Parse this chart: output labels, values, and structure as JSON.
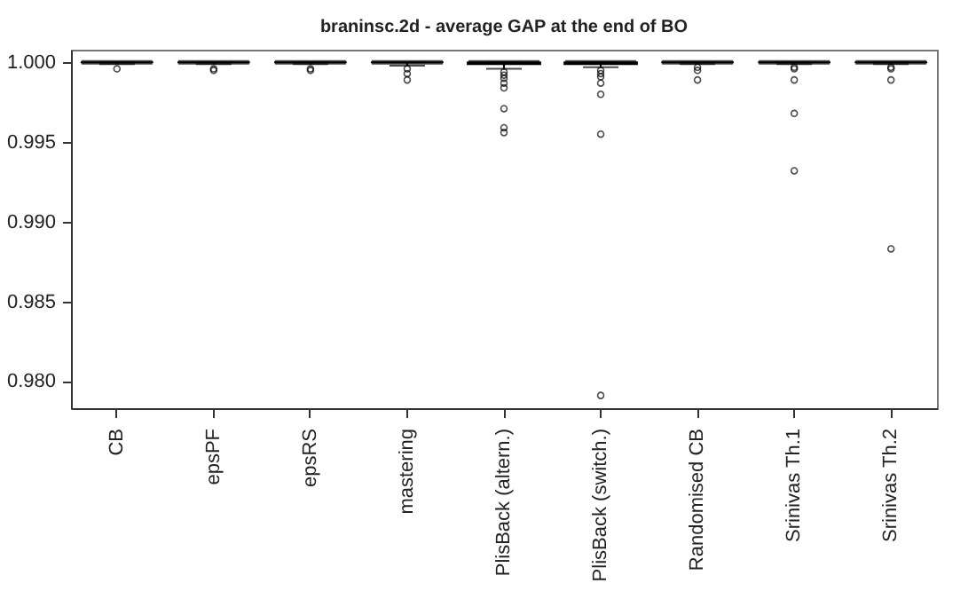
{
  "chart_data": {
    "type": "box",
    "title": "braninsc.2d - average GAP at the end of BO",
    "categories": [
      "CB",
      "epsPF",
      "epsRS",
      "mastering",
      "PlisBack (altern.)",
      "PlisBack (switch.)",
      "Randomised CB",
      "Srinivas Th.1",
      "Srinivas Th.2"
    ],
    "boxes": [
      {
        "low": 0.9999,
        "q1": 1.0,
        "median": 1.0,
        "q3": 1.0,
        "high": 1.0,
        "outliers": [
          0.9996
        ]
      },
      {
        "low": 0.9999,
        "q1": 1.0,
        "median": 1.0,
        "q3": 1.0,
        "high": 1.0,
        "outliers": [
          0.9996,
          0.9995
        ]
      },
      {
        "low": 0.9999,
        "q1": 1.0,
        "median": 1.0,
        "q3": 1.0,
        "high": 1.0,
        "outliers": [
          0.9996,
          0.9995
        ]
      },
      {
        "low": 0.9998,
        "q1": 1.0,
        "median": 1.0,
        "q3": 1.0,
        "high": 1.0,
        "outliers": [
          0.9996,
          0.9993,
          0.9989
        ]
      },
      {
        "low": 0.9996,
        "q1": 0.9999,
        "median": 1.0,
        "q3": 1.0,
        "high": 1.0,
        "outliers": [
          0.9994,
          0.9992,
          0.999,
          0.9987,
          0.9984,
          0.9971,
          0.9959,
          0.9956
        ]
      },
      {
        "low": 0.9997,
        "q1": 0.9999,
        "median": 1.0,
        "q3": 1.0,
        "high": 1.0,
        "outliers": [
          0.9995,
          0.9993,
          0.9991,
          0.9987,
          0.998,
          0.9955,
          0.9791
        ]
      },
      {
        "low": 0.9999,
        "q1": 1.0,
        "median": 1.0,
        "q3": 1.0,
        "high": 1.0,
        "outliers": [
          0.9997,
          0.9995,
          0.9989
        ]
      },
      {
        "low": 0.9999,
        "q1": 1.0,
        "median": 1.0,
        "q3": 1.0,
        "high": 1.0,
        "outliers": [
          0.9997,
          0.9996,
          0.9989,
          0.9968,
          0.9932
        ]
      },
      {
        "low": 0.9999,
        "q1": 1.0,
        "median": 1.0,
        "q3": 1.0,
        "high": 1.0,
        "outliers": [
          0.9997,
          0.9996,
          0.9989,
          0.9883
        ]
      }
    ],
    "ylim": [
      0.9783,
      1.0008
    ],
    "yticks": [
      {
        "value": 0.98,
        "label": "0.980"
      },
      0.985,
      {
        "value": 0.99,
        "label": "0.990"
      },
      0.995,
      {
        "value": 1,
        "label": "1.000"
      }
    ]
  }
}
